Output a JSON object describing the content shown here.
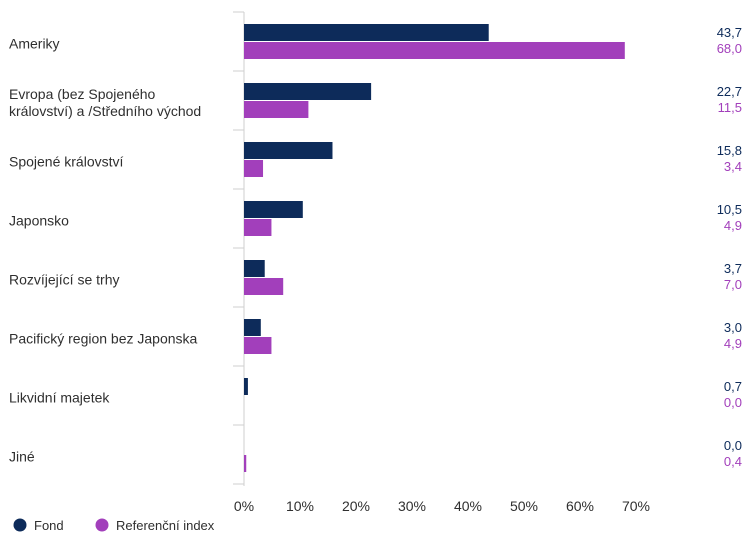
{
  "chart_data": {
    "type": "bar",
    "orientation": "horizontal",
    "categories": [
      [
        "Ameriky"
      ],
      [
        "Evropa (bez Spojeného",
        "království) a /Středního východ"
      ],
      [
        "Spojené království"
      ],
      [
        "Japonsko"
      ],
      [
        "Rozvíjející se trhy"
      ],
      [
        "Pacifický region bez Japonska"
      ],
      [
        "Likvidní majetek"
      ],
      [
        "Jiné"
      ]
    ],
    "series": [
      {
        "name": "Fond",
        "color": "#0d2b5a",
        "values": [
          43.7,
          22.7,
          15.8,
          10.5,
          3.7,
          3.0,
          0.7,
          0.0
        ],
        "labels": [
          "43,7",
          "22,7",
          "15,8",
          "10,5",
          "3,7",
          "3,0",
          "0,7",
          "0,0"
        ]
      },
      {
        "name": "Referenční index",
        "color": "#a23fbb",
        "values": [
          68.0,
          11.5,
          3.4,
          4.9,
          7.0,
          4.9,
          0.0,
          0.4
        ],
        "labels": [
          "68,0",
          "11,5",
          "3,4",
          "4,9",
          "7,0",
          "4,9",
          "0,0",
          "0,4"
        ]
      }
    ],
    "xlim": [
      0,
      80
    ],
    "xticks": [
      0,
      10,
      20,
      30,
      40,
      50,
      60,
      70
    ],
    "xtick_labels": [
      "0%",
      "10%",
      "20%",
      "30%",
      "40%",
      "50%",
      "60%",
      "70%"
    ],
    "grid": false,
    "legend_position": "bottom-left"
  }
}
